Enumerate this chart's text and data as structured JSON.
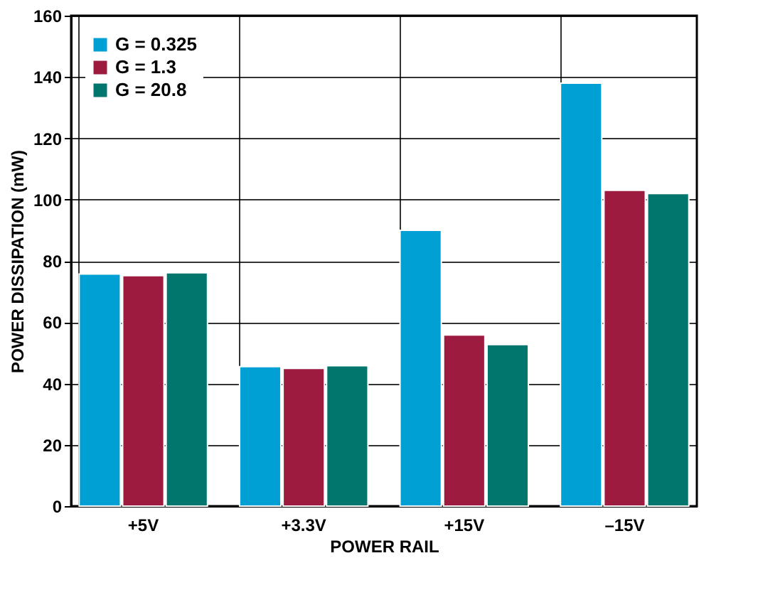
{
  "chart_data": {
    "type": "bar",
    "xlabel": "POWER RAIL",
    "ylabel": "POWER DISSIPATION (mW)",
    "categories": [
      "+5V",
      "+3.3V",
      "+15V",
      "–15V"
    ],
    "series": [
      {
        "name": "G = 0.325",
        "color": "#009fd4",
        "values": [
          75.7,
          45.5,
          90,
          138
        ]
      },
      {
        "name": "G = 1.3",
        "color": "#9e1b40",
        "values": [
          75.2,
          44.9,
          55.8,
          103
        ]
      },
      {
        "name": "G = 20.8",
        "color": "#00766c",
        "values": [
          76.1,
          45.8,
          52.7,
          102
        ]
      }
    ],
    "ylim": [
      0,
      160
    ],
    "yticks": [
      0,
      20,
      40,
      60,
      80,
      100,
      120,
      140,
      160
    ],
    "grid": true,
    "legend": "top left"
  }
}
